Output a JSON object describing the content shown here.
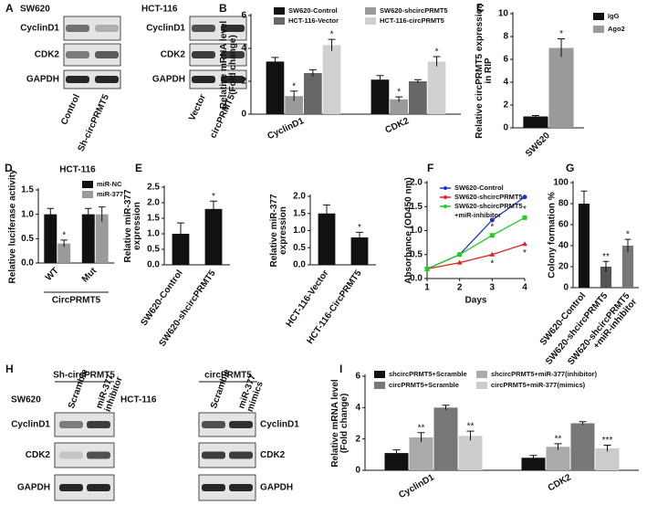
{
  "blots": [
    {
      "panel_label": "A",
      "title": "SW620",
      "rows": [
        "CyclinD1",
        "CDK2",
        "GAPDH"
      ],
      "lanes": [
        "Control",
        "Sh-circPRMT5"
      ]
    },
    {
      "title": "HCT-116",
      "rows": [
        "CyclinD1",
        "CDK2",
        "GAPDH"
      ],
      "lanes": [
        "Vector",
        "circPRMT5"
      ]
    },
    {
      "panel_label": "H",
      "title": "SW620",
      "group": "Sh-circPRMT5",
      "rows": [
        "CyclinD1",
        "CDK2",
        "GAPDH"
      ],
      "lanes": [
        "Scramble",
        "miR-377\ninhibitor"
      ]
    },
    {
      "title": "HCT-116",
      "group": "circPRMT5",
      "rows": [
        "CyclinD1",
        "CDK2",
        "GAPDH"
      ],
      "lanes": [
        "Scramble",
        "miR-377\nmimics"
      ]
    }
  ],
  "chart_data": [
    {
      "type": "bar",
      "panel_label": "B",
      "y_label": "Relative mRNA level\n(Fold change)",
      "categories": [
        "CyclinD1",
        "CDK2"
      ],
      "series": [
        {
          "name": "SW620-Control",
          "color": "#111111",
          "values": [
            3.2,
            2.1
          ],
          "errors": [
            0.25,
            0.25
          ]
        },
        {
          "name": "SW620-shcircPRMT5",
          "color": "#9a9a9a",
          "values": [
            1.1,
            0.9
          ],
          "errors": [
            0.3,
            0.15
          ],
          "annotations": [
            "*",
            "*"
          ]
        },
        {
          "name": "HCT-116-Vector",
          "color": "#666666",
          "values": [
            2.5,
            2.0
          ],
          "errors": [
            0.2,
            0.1
          ]
        },
        {
          "name": "HCT-116-circPRMT5",
          "color": "#d0d0d0",
          "values": [
            4.2,
            3.2
          ],
          "errors": [
            0.35,
            0.3
          ],
          "annotations": [
            "*",
            "*"
          ]
        }
      ],
      "ylim": [
        0,
        6
      ],
      "yticks": [
        0,
        2,
        4,
        6
      ]
    },
    {
      "type": "bar",
      "panel_label": "C",
      "y_label": "Relative circPRMT5 expression\nin RIP",
      "categories": [
        "SW620"
      ],
      "series": [
        {
          "name": "IgG",
          "color": "#111111",
          "values": [
            1.0
          ],
          "errors": [
            0.08
          ]
        },
        {
          "name": "Ago2",
          "color": "#9a9a9a",
          "values": [
            7.0
          ],
          "errors": [
            0.8
          ],
          "annotations": [
            "*"
          ]
        }
      ],
      "ylim": [
        0,
        10
      ],
      "yticks": [
        0,
        2,
        4,
        6,
        8,
        10
      ]
    },
    {
      "type": "bar",
      "panel_label": "D",
      "title": "HCT-116",
      "y_label": "Relative luciferase activity",
      "categories": [
        "WT",
        "Mut"
      ],
      "group_label": "CircPRMT5",
      "series": [
        {
          "name": "miR-NC",
          "color": "#111111",
          "values": [
            1.0,
            1.0
          ],
          "errors": [
            0.12,
            0.12
          ]
        },
        {
          "name": "miR-377",
          "color": "#9a9a9a",
          "values": [
            0.4,
            1.0
          ],
          "errors": [
            0.07,
            0.15
          ],
          "annotations": [
            "*",
            null
          ]
        }
      ],
      "ylim": [
        0,
        1.5
      ],
      "yticks": [
        {
          "value": 0,
          "label": "0.0"
        },
        {
          "value": 0.5,
          "label": "0.5"
        },
        {
          "value": 1,
          "label": "1.0"
        },
        {
          "value": 1.5,
          "label": "1.5"
        }
      ]
    },
    {
      "type": "bar",
      "panel_label": "E",
      "y_label": "Relative miR-377\nexpression",
      "categories": [
        "SW620-Control",
        "SW620-shcircPRMT5"
      ],
      "series": [
        {
          "colors": [
            "#111111",
            "#111111"
          ],
          "values": [
            1.0,
            1.8
          ],
          "errors": [
            0.35,
            0.25
          ],
          "annotations": [
            null,
            "*"
          ]
        }
      ],
      "ylim": [
        0,
        2.5
      ],
      "yticks": [
        {
          "value": 0,
          "label": "0.0"
        },
        {
          "value": 0.5,
          "label": "0.5"
        },
        {
          "value": 1,
          "label": "1.0"
        },
        {
          "value": 1.5,
          "label": "1.5"
        },
        {
          "value": 2,
          "label": "2.0"
        },
        {
          "value": 2.5,
          "label": "2.5"
        }
      ]
    },
    {
      "type": "bar",
      "y_label": "Relative miR-377\nexpression",
      "categories": [
        "HCT-116-Vector",
        "HCT-116-CircPRMT5"
      ],
      "series": [
        {
          "colors": [
            "#111111",
            "#111111"
          ],
          "values": [
            1.5,
            0.8
          ],
          "errors": [
            0.25,
            0.15
          ],
          "annotations": [
            null,
            "*"
          ]
        }
      ],
      "ylim": [
        0,
        2.0
      ],
      "yticks": [
        {
          "value": 0,
          "label": "0.0"
        },
        {
          "value": 0.5,
          "label": "0.5"
        },
        {
          "value": 1,
          "label": "1.0"
        },
        {
          "value": 1.5,
          "label": "1.5"
        },
        {
          "value": 2,
          "label": "2.0"
        }
      ]
    },
    {
      "type": "line",
      "panel_label": "F",
      "y_label": "Absorbance (OD450 nm)",
      "x_label": "Days",
      "x": [
        1,
        2,
        3,
        4
      ],
      "series": [
        {
          "name": "SW620-Control",
          "color": "#2233cc",
          "values": [
            0.2,
            0.5,
            1.22,
            1.7
          ]
        },
        {
          "name": "SW620-shcircPRMT5",
          "color": "#dd2222",
          "values": [
            0.2,
            0.33,
            0.5,
            0.72
          ],
          "annotations": [
            null,
            null,
            "*",
            "*"
          ]
        },
        {
          "name": "SW620-shcircPRMT5\n+miR-inhibitor",
          "color": "#22cc22",
          "values": [
            0.2,
            0.5,
            0.9,
            1.27
          ],
          "annotations": [
            null,
            null,
            "*",
            "*"
          ]
        }
      ],
      "xlim": [
        1,
        4
      ],
      "xticks": [
        1,
        2,
        3,
        4
      ],
      "ylim": [
        0,
        2.0
      ],
      "yticks": [
        {
          "value": 0,
          "label": "0.0"
        },
        {
          "value": 0.5,
          "label": "0.5"
        },
        {
          "value": 1,
          "label": "1.0"
        },
        {
          "value": 1.5,
          "label": "1.5"
        },
        {
          "value": 2,
          "label": "2.0"
        }
      ]
    },
    {
      "type": "bar",
      "panel_label": "G",
      "y_label": "Colony formation %",
      "categories": [
        "SW620-Control",
        "SW620-shcircPRMT5",
        "SW620-shcircPRMT5\n+miR-inhibitor"
      ],
      "series": [
        {
          "colors": [
            "#111111",
            "#555555",
            "#777777"
          ],
          "values": [
            80,
            20,
            40
          ],
          "errors": [
            12,
            5,
            6
          ],
          "annotations": [
            null,
            "**",
            "*"
          ]
        }
      ],
      "ylim": [
        0,
        100
      ],
      "yticks": [
        0,
        20,
        40,
        60,
        80,
        100
      ]
    },
    {
      "type": "bar",
      "panel_label": "I",
      "y_label": "Relative mRNA level\n(Fold change)",
      "categories": [
        "CyclinD1",
        "CDK2"
      ],
      "series": [
        {
          "name": "shcircPRMT5+Scramble",
          "color": "#111111",
          "values": [
            1.1,
            0.8
          ],
          "errors": [
            0.2,
            0.15
          ]
        },
        {
          "name": "shcircPRMT5+miR-377(inhibitor)",
          "color": "#aaaaaa",
          "values": [
            2.1,
            1.5
          ],
          "errors": [
            0.3,
            0.2
          ],
          "annotations": [
            "**",
            "**"
          ]
        },
        {
          "name": "circPRMT5+Scramble",
          "color": "#777777",
          "values": [
            4.0,
            3.0
          ],
          "errors": [
            0.15,
            0.1
          ]
        },
        {
          "name": "circPRMT5+miR-377(mimics)",
          "color": "#cccccc",
          "values": [
            2.2,
            1.4
          ],
          "errors": [
            0.3,
            0.2
          ],
          "annotations": [
            "**",
            "***"
          ]
        }
      ],
      "ylim": [
        0,
        6
      ],
      "yticks": [
        0,
        2,
        4,
        6
      ]
    }
  ]
}
